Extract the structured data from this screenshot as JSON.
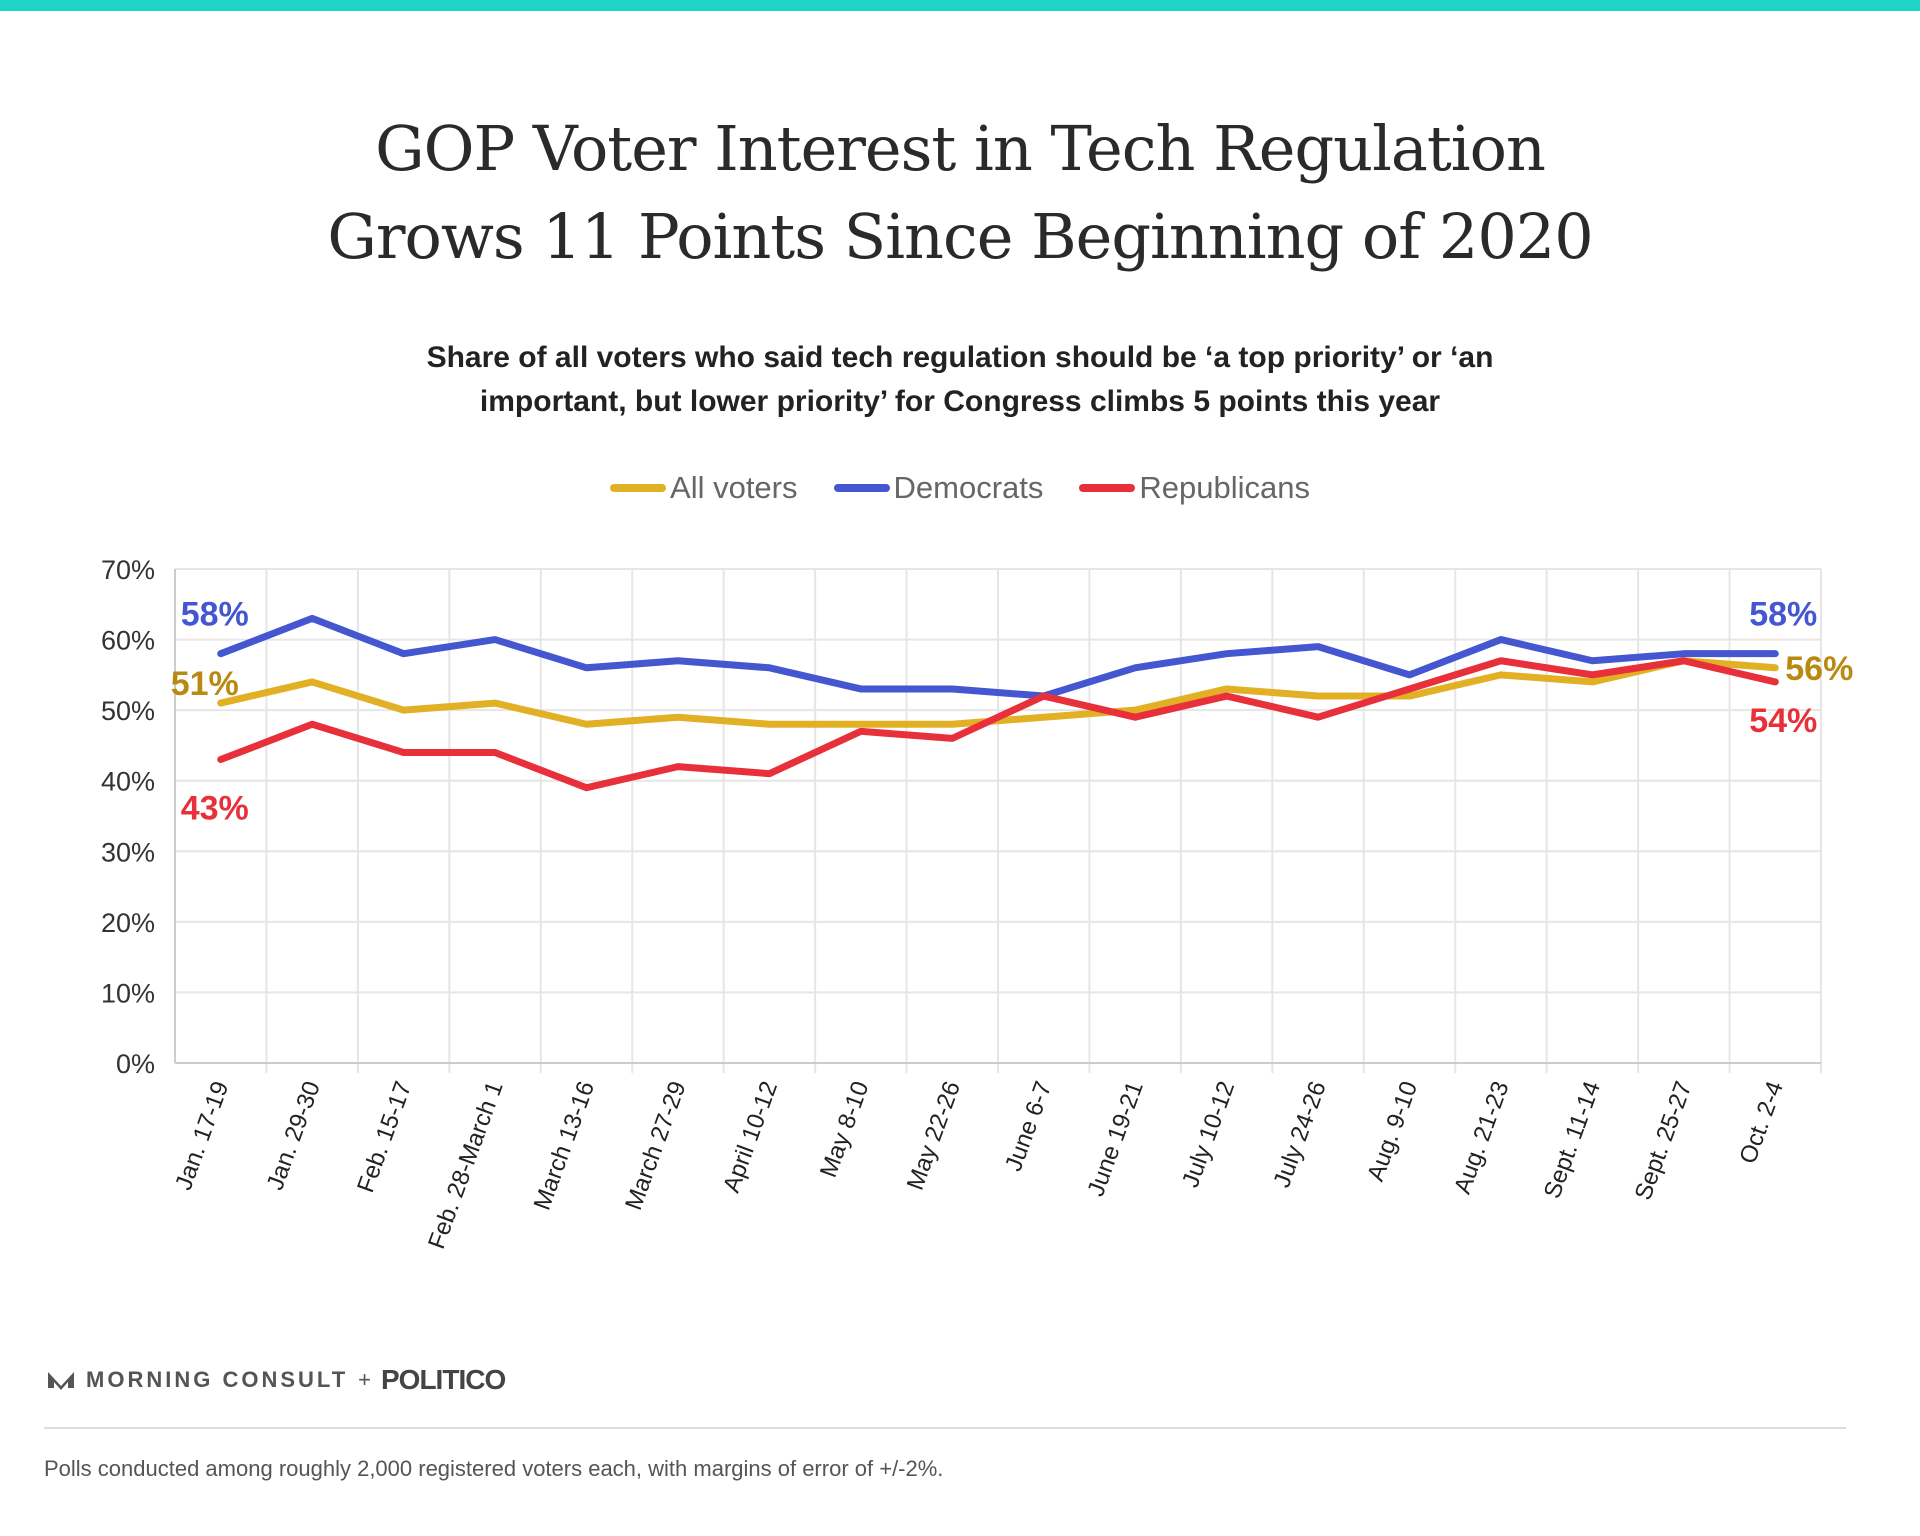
{
  "chart_data": {
    "type": "line",
    "title": "GOP Voter Interest in Tech Regulation Grows 11 Points Since Beginning of 2020",
    "title_lines": [
      "GOP Voter Interest in Tech Regulation",
      "Grows 11 Points Since Beginning of 2020"
    ],
    "subtitle_lines": [
      "Share of all voters who said tech regulation should be ‘a top priority’ or ‘an",
      "important, but lower priority’ for Congress climbs 5 points this year"
    ],
    "xlabel": "",
    "ylabel": "",
    "ylim": [
      0,
      70
    ],
    "yticks": [
      0,
      10,
      20,
      30,
      40,
      50,
      60,
      70
    ],
    "ytick_labels": [
      "0%",
      "10%",
      "20%",
      "30%",
      "40%",
      "50%",
      "60%",
      "70%"
    ],
    "grid": true,
    "legend_position": "top-center",
    "categories": [
      "Jan. 17-19",
      "Jan. 29-30",
      "Feb. 15-17",
      "Feb. 28-March 1",
      "March 13-16",
      "March 27-29",
      "April 10-12",
      "May 8-10",
      "May 22-26",
      "June 6-7",
      "June 19-21",
      "July 10-12",
      "July 24-26",
      "Aug. 9-10",
      "Aug. 21-23",
      "Sept. 11-14",
      "Sept. 25-27",
      "Oct. 2-4"
    ],
    "series": [
      {
        "name": "All voters",
        "color": "#e2b024",
        "label_color": "#b88a12",
        "values": [
          51,
          54,
          50,
          51,
          48,
          49,
          48,
          48,
          48,
          49,
          50,
          53,
          52,
          52,
          55,
          54,
          57,
          56
        ],
        "start_label": "51%",
        "end_label": "56%"
      },
      {
        "name": "Democrats",
        "color": "#4457d0",
        "label_color": "#4457d0",
        "values": [
          58,
          63,
          58,
          60,
          56,
          57,
          56,
          53,
          53,
          52,
          56,
          58,
          59,
          55,
          60,
          57,
          58,
          58
        ],
        "start_label": "58%",
        "end_label": "58%"
      },
      {
        "name": "Republicans",
        "color": "#e8303a",
        "label_color": "#e8303a",
        "values": [
          43,
          48,
          44,
          44,
          39,
          42,
          41,
          47,
          46,
          52,
          49,
          52,
          49,
          53,
          57,
          55,
          57,
          54
        ],
        "start_label": "43%",
        "end_label": "54%"
      }
    ]
  },
  "branding": {
    "morning_consult": "MORNING CONSULT",
    "plus": "+",
    "politico": "POLITICO"
  },
  "footnote": "Polls conducted among roughly 2,000 registered voters each, with margins of error of +/-2%.",
  "colors": {
    "accent_bar": "#1fd3c6"
  }
}
